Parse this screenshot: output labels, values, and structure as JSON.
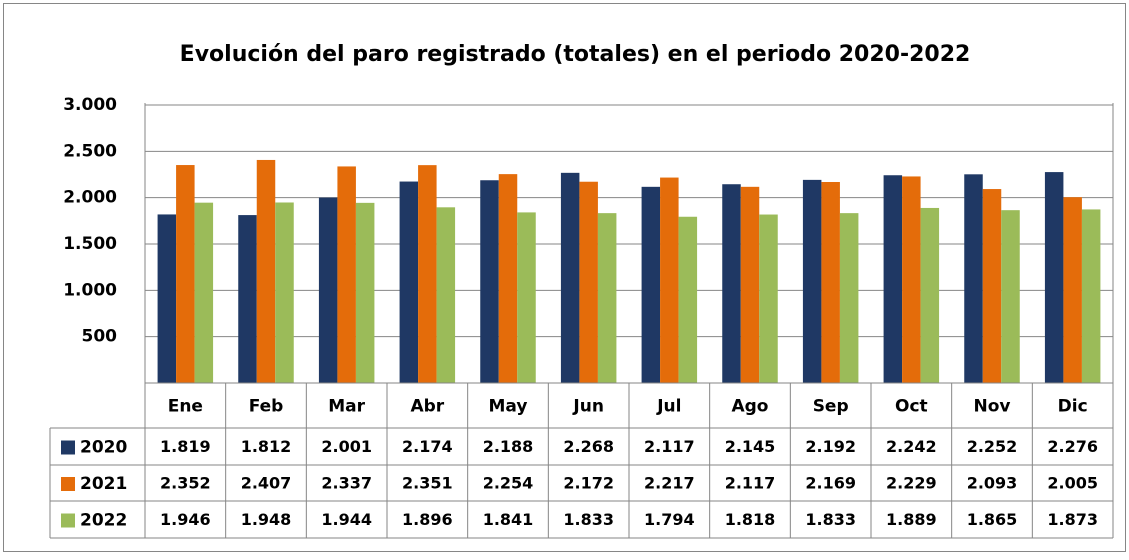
{
  "chart_data": {
    "type": "bar",
    "title": "Evolución del paro registrado (totales) en el periodo 2020-2022",
    "categories": [
      "Ene",
      "Feb",
      "Mar",
      "Abr",
      "May",
      "Jun",
      "Jul",
      "Ago",
      "Sep",
      "Oct",
      "Nov",
      "Dic"
    ],
    "series": [
      {
        "name": "2020",
        "color": "#1f3864",
        "values": [
          1819,
          1812,
          2001,
          2174,
          2188,
          2268,
          2117,
          2145,
          2192,
          2242,
          2252,
          2276
        ],
        "value_labels": [
          "1.819",
          "1.812",
          "2.001",
          "2.174",
          "2.188",
          "2.268",
          "2.117",
          "2.145",
          "2.192",
          "2.242",
          "2.252",
          "2.276"
        ]
      },
      {
        "name": "2021",
        "color": "#e46c0a",
        "values": [
          2352,
          2407,
          2337,
          2351,
          2254,
          2172,
          2217,
          2117,
          2169,
          2229,
          2093,
          2005
        ],
        "value_labels": [
          "2.352",
          "2.407",
          "2.337",
          "2.351",
          "2.254",
          "2.172",
          "2.217",
          "2.117",
          "2.169",
          "2.229",
          "2.093",
          "2.005"
        ]
      },
      {
        "name": "2022",
        "color": "#9bbb59",
        "values": [
          1946,
          1948,
          1944,
          1896,
          1841,
          1833,
          1794,
          1818,
          1833,
          1889,
          1865,
          1873
        ],
        "value_labels": [
          "1.946",
          "1.948",
          "1.944",
          "1.896",
          "1.841",
          "1.833",
          "1.794",
          "1.818",
          "1.833",
          "1.889",
          "1.865",
          "1.873"
        ]
      }
    ],
    "ylim": [
      0,
      3000
    ],
    "yticks": [
      {
        "value": 500,
        "label": "500"
      },
      {
        "value": 1000,
        "label": "1.000"
      },
      {
        "value": 1500,
        "label": "1.500"
      },
      {
        "value": 2000,
        "label": "2.000"
      },
      {
        "value": 2500,
        "label": "2.500"
      },
      {
        "value": 3000,
        "label": "3.000"
      }
    ],
    "grid": true
  }
}
